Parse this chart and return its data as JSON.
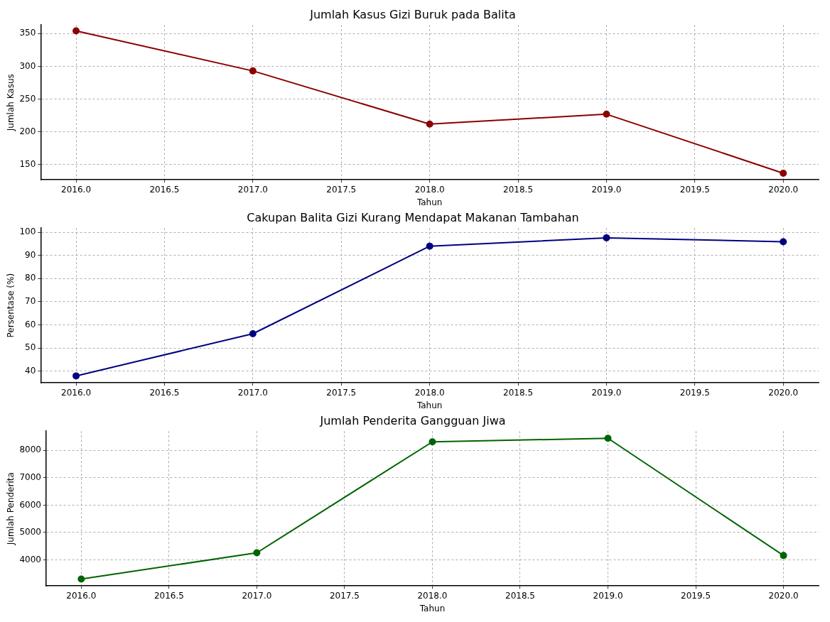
{
  "chart_data": [
    {
      "type": "line",
      "title": "Jumlah Kasus Gizi Buruk pada Balita",
      "xlabel": "Tahun",
      "ylabel": "Jumlah Kasus",
      "x": [
        2016,
        2017,
        2018,
        2019,
        2020
      ],
      "series": [
        {
          "color": "#8b0000",
          "values": [
            354,
            293,
            212,
            227,
            137
          ]
        }
      ],
      "xlim": [
        2015.8,
        2020.2
      ],
      "xticks": [
        {
          "value": 2016,
          "label": "2016.0"
        },
        {
          "value": 2016.5,
          "label": "2016.5"
        },
        {
          "value": 2017,
          "label": "2017.0"
        },
        {
          "value": 2017.5,
          "label": "2017.5"
        },
        {
          "value": 2018,
          "label": "2018.0"
        },
        {
          "value": 2018.5,
          "label": "2018.5"
        },
        {
          "value": 2019,
          "label": "2019.0"
        },
        {
          "value": 2019.5,
          "label": "2019.5"
        },
        {
          "value": 2020,
          "label": "2020.0"
        }
      ],
      "ylim": [
        127,
        363
      ],
      "yticks": [
        150,
        200,
        250,
        300,
        350
      ],
      "grid": true,
      "marker": "circle"
    },
    {
      "type": "line",
      "title": "Cakupan Balita Gizi Kurang Mendapat Makanan Tambahan",
      "xlabel": "Tahun",
      "ylabel": "Persentase (%)",
      "x": [
        2016,
        2017,
        2018,
        2019,
        2020
      ],
      "series": [
        {
          "color": "#000080",
          "values": [
            38,
            56.2,
            94,
            97.6,
            95.9
          ]
        }
      ],
      "xlim": [
        2015.8,
        2020.2
      ],
      "xticks": [
        {
          "value": 2016,
          "label": "2016.0"
        },
        {
          "value": 2016.5,
          "label": "2016.5"
        },
        {
          "value": 2017,
          "label": "2017.0"
        },
        {
          "value": 2017.5,
          "label": "2017.5"
        },
        {
          "value": 2018,
          "label": "2018.0"
        },
        {
          "value": 2018.5,
          "label": "2018.5"
        },
        {
          "value": 2019,
          "label": "2019.0"
        },
        {
          "value": 2019.5,
          "label": "2019.5"
        },
        {
          "value": 2020,
          "label": "2020.0"
        }
      ],
      "ylim": [
        35,
        101.8
      ],
      "yticks": [
        40,
        50,
        60,
        70,
        80,
        90,
        100
      ],
      "grid": true,
      "marker": "circle"
    },
    {
      "type": "line",
      "title": "Jumlah Penderita Gangguan Jiwa",
      "xlabel": "Tahun",
      "ylabel": "Jumlah Penderita",
      "x": [
        2016,
        2017,
        2018,
        2019,
        2020
      ],
      "series": [
        {
          "color": "#006400",
          "values": [
            3300,
            4260,
            8310,
            8440,
            4160
          ]
        }
      ],
      "xlim": [
        2015.8,
        2020.2
      ],
      "xticks": [
        {
          "value": 2016,
          "label": "2016.0"
        },
        {
          "value": 2016.5,
          "label": "2016.5"
        },
        {
          "value": 2017,
          "label": "2017.0"
        },
        {
          "value": 2017.5,
          "label": "2017.5"
        },
        {
          "value": 2018,
          "label": "2018.0"
        },
        {
          "value": 2018.5,
          "label": "2018.5"
        },
        {
          "value": 2019,
          "label": "2019.0"
        },
        {
          "value": 2019.5,
          "label": "2019.5"
        },
        {
          "value": 2020,
          "label": "2020.0"
        }
      ],
      "ylim": [
        3050,
        8700
      ],
      "yticks": [
        4000,
        5000,
        6000,
        7000,
        8000
      ],
      "grid": true,
      "marker": "circle"
    }
  ]
}
